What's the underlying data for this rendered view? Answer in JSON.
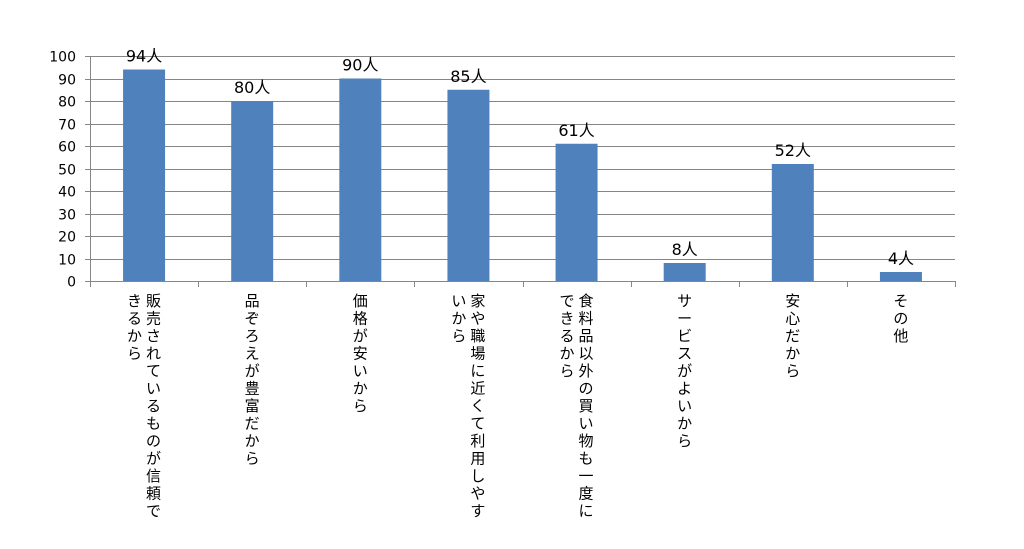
{
  "chart_data": {
    "type": "bar",
    "categories": [
      "販売されているものが信頼できるから",
      "品ぞろえが豊富だから",
      "価格が安いから",
      "家や職場に近くて利用しやすいから",
      "食料品以外の買い物も一度にできるから",
      "サービスがよいから",
      "安心だから",
      "その他"
    ],
    "category_lines": [
      [
        "販売されているものが信頼で",
        "きるから"
      ],
      [
        "品ぞろえが豊富だから"
      ],
      [
        "価格が安いから"
      ],
      [
        "家や職場に近くて利用しやす",
        "いから"
      ],
      [
        "食料品以外の買い物も一度に",
        "できるから"
      ],
      [
        "サービスがよいから"
      ],
      [
        "安心だから"
      ],
      [
        "その他"
      ]
    ],
    "values": [
      94,
      80,
      90,
      85,
      61,
      8,
      52,
      4
    ],
    "data_labels": [
      "94人",
      "80人",
      "90人",
      "85人",
      "61人",
      "8人",
      "52人",
      "4人"
    ],
    "yticks": [
      "0",
      "10",
      "20",
      "30",
      "40",
      "50",
      "60",
      "70",
      "80",
      "90",
      "100"
    ],
    "ylim": [
      0,
      100
    ],
    "grid": true,
    "legend": "none",
    "bar_color": "#4F81BD",
    "grid_color": "#868686"
  }
}
